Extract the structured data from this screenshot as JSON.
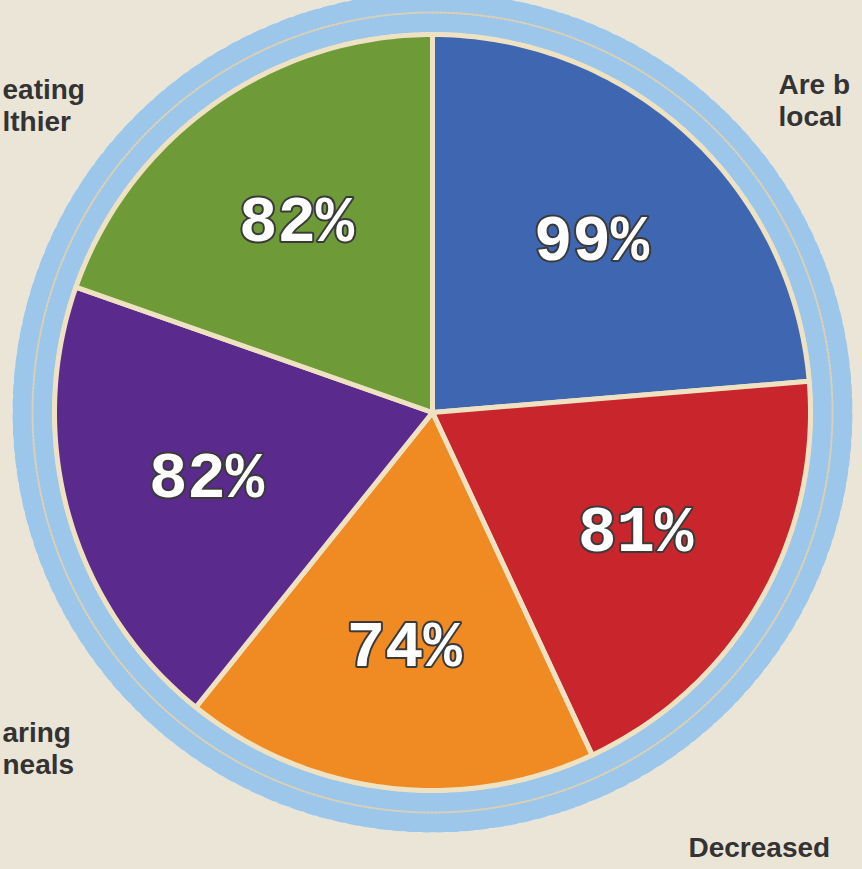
{
  "chart_data": {
    "type": "pie",
    "values": [
      99,
      81,
      74,
      82,
      82
    ],
    "value_labels": [
      "99%",
      "81%",
      "74%",
      "82%",
      "82%"
    ],
    "colors": [
      "#3f66b0",
      "#c8262c",
      "#f08a22",
      "#5a2a8c",
      "#6e9a38"
    ],
    "data_labels": true,
    "tick_labels": false,
    "annotations": [
      "eating\nlthier",
      "Are b\nlocal",
      "aring\nneals",
      "Decreased"
    ]
  }
}
